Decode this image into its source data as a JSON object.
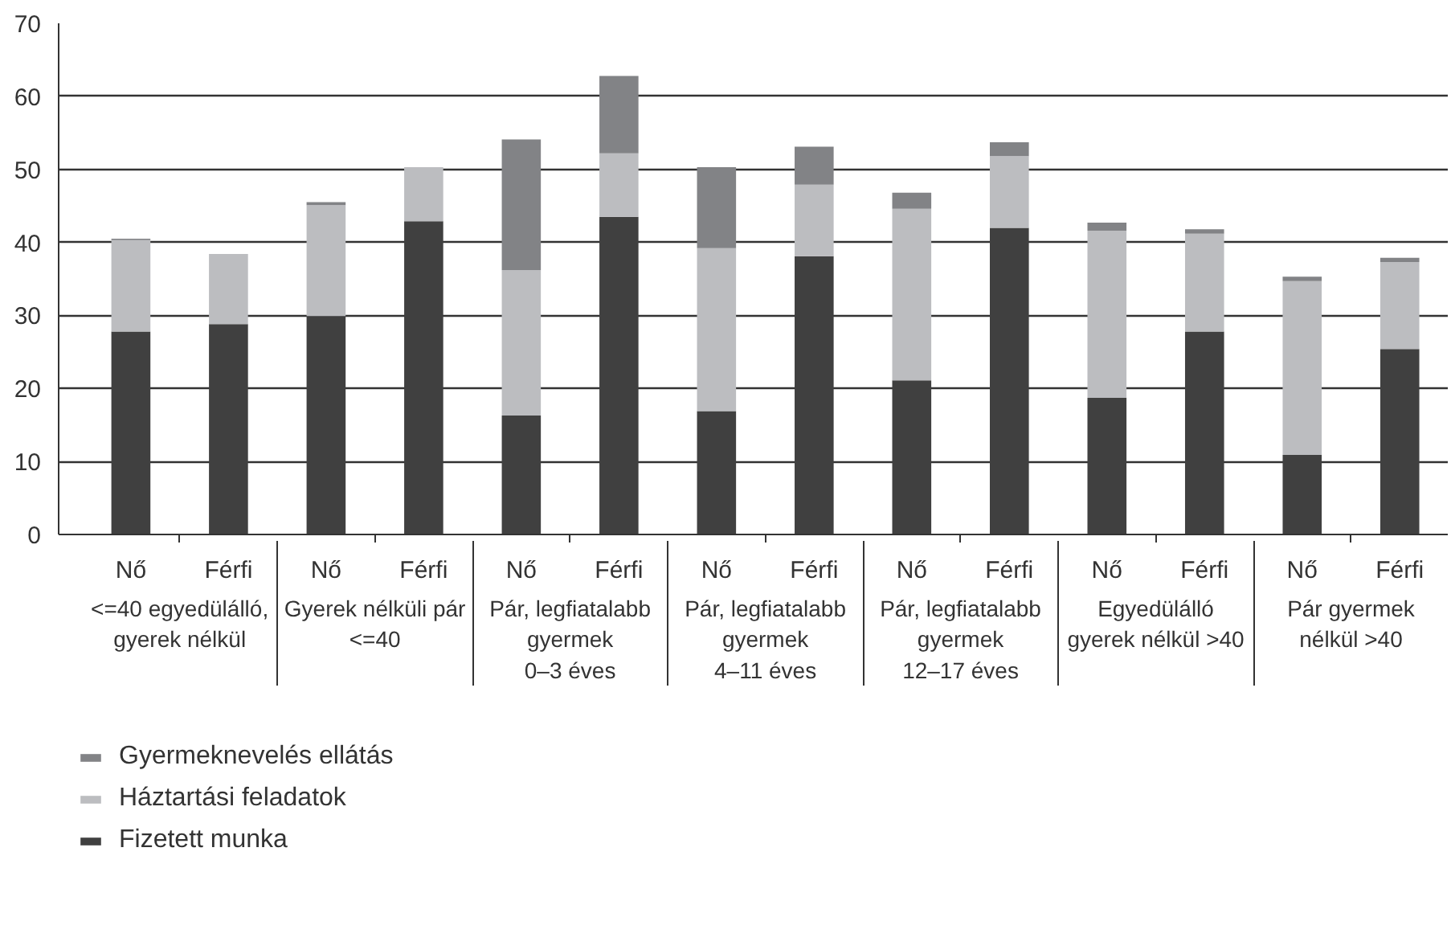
{
  "chart_data": {
    "type": "bar",
    "stacked": true,
    "categories": [
      "Nő",
      "Férfi",
      "Nő",
      "Férfi",
      "Nő",
      "Férfi",
      "Nő",
      "Férfi",
      "Nő",
      "Férfi",
      "Nő",
      "Férfi",
      "Nő",
      "Férfi"
    ],
    "series": [
      {
        "name": "Fizetett munka",
        "color": "#404040",
        "values": [
          27.8,
          28.8,
          29.9,
          42.9,
          16.3,
          43.5,
          16.9,
          38.1,
          21.1,
          42.0,
          18.7,
          27.8,
          10.9,
          25.4
        ]
      },
      {
        "name": "Háztartási feladatok",
        "color": "#bcbdc0",
        "values": [
          12.5,
          9.6,
          15.2,
          7.4,
          19.9,
          8.7,
          22.3,
          9.8,
          23.5,
          9.8,
          22.9,
          13.4,
          23.8,
          11.9
        ]
      },
      {
        "name": "Gyermeknevelés ellátás",
        "color": "#828386",
        "values": [
          0.2,
          0,
          0.4,
          0,
          17.9,
          10.6,
          11.1,
          5.2,
          2.2,
          1.9,
          1.1,
          0.6,
          0.6,
          0.6
        ]
      }
    ],
    "annotations": [
      "<=40 egyedülálló,\ngyerek nélkül",
      "Gyerek nélküli pár\n<=40",
      "Pár, legfiatalabb\ngyermek\n0–3 éves",
      "Pár, legfiatalabb\ngyermek\n4–11 éves",
      "Pár, legfiatalabb\ngyermek\n12–17 éves",
      "Egyedülálló\ngyerek nélkül >40",
      "Pár gyermek\nnélkül >40"
    ],
    "ylim": [
      0,
      70
    ],
    "yticks": [
      0,
      10,
      20,
      30,
      40,
      50,
      60,
      70
    ],
    "grid": "y",
    "legend": "bottom"
  }
}
